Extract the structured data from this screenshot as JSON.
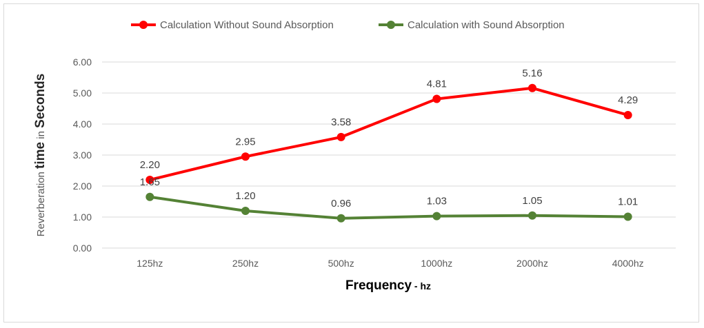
{
  "chart_data": {
    "type": "line",
    "categories": [
      "125hz",
      "250hz",
      "500hz",
      "1000hz",
      "2000hz",
      "4000hz"
    ],
    "series": [
      {
        "name": "Calculation Without Sound Absorption",
        "color": "#ff0000",
        "values": [
          2.2,
          2.95,
          3.58,
          4.81,
          5.16,
          4.29
        ],
        "labels": [
          "2.20",
          "2.95",
          "3.58",
          "4.81",
          "5.16",
          "4.29"
        ]
      },
      {
        "name": "Calculation with Sound Absorption",
        "color": "#548235",
        "values": [
          1.65,
          1.2,
          0.96,
          1.03,
          1.05,
          1.01
        ],
        "labels": [
          "1.65",
          "1.20",
          "0.96",
          "1.03",
          "1.05",
          "1.01"
        ]
      }
    ],
    "ylim": [
      0,
      6
    ],
    "yticks": [
      "0.00",
      "1.00",
      "2.00",
      "3.00",
      "4.00",
      "5.00",
      "6.00"
    ],
    "ylabel": {
      "part1": "Reverberation ",
      "part2": "time",
      "part3": " in ",
      "part4": "Seconds"
    },
    "xlabel": {
      "main": "Frequency",
      "suffix": " - hz"
    },
    "grid": true,
    "legend": "top"
  }
}
